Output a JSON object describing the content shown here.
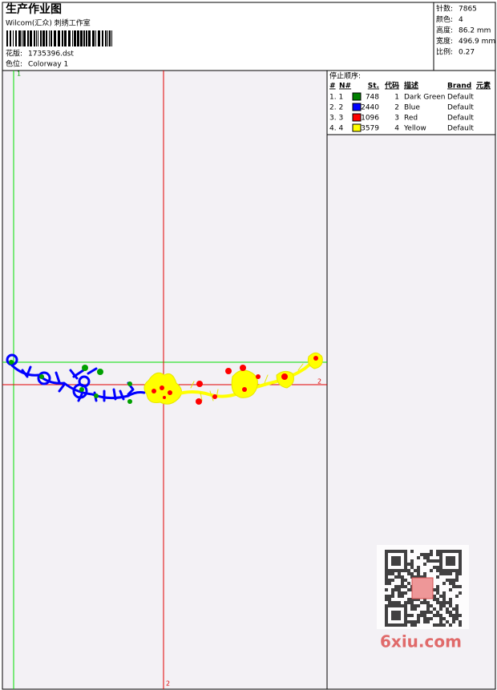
{
  "header": {
    "title": "生产作业图",
    "studio": "Wilcom(汇众) 刺绣工作室",
    "design": {
      "label": "花版:",
      "value": "1735396.dst"
    },
    "colorway": {
      "label": "色位:",
      "value": "Colorway 1"
    }
  },
  "stats": [
    {
      "label": "针数:",
      "value": "7865"
    },
    {
      "label": "颜色:",
      "value": "4"
    },
    {
      "label": "高度:",
      "value": "86.2 mm"
    },
    {
      "label": "宽度:",
      "value": "496.9 mm"
    },
    {
      "label": "比例:",
      "value": "0.27"
    }
  ],
  "stop_sequence": {
    "title": "停止顺序:",
    "columns": [
      "#",
      "N#",
      "St.",
      "代码",
      "描述",
      "Brand",
      "元素"
    ],
    "rows": [
      {
        "index": "1. 1",
        "color": "#008000",
        "stitches": "748",
        "code": "1",
        "description": "Dark Green",
        "brand": "Default"
      },
      {
        "index": "2. 2",
        "color": "#0000ff",
        "stitches": "2440",
        "code": "2",
        "description": "Blue",
        "brand": "Default"
      },
      {
        "index": "3. 3",
        "color": "#ff0000",
        "stitches": "1096",
        "code": "3",
        "description": "Red",
        "brand": "Default"
      },
      {
        "index": "4. 4",
        "color": "#ffff00",
        "stitches": "3579",
        "code": "4",
        "description": "Yellow",
        "brand": "Default"
      }
    ]
  },
  "markers": {
    "start": "1",
    "horizontal_end": "2",
    "vertical_end": "2"
  },
  "watermark": "6xiu.com"
}
